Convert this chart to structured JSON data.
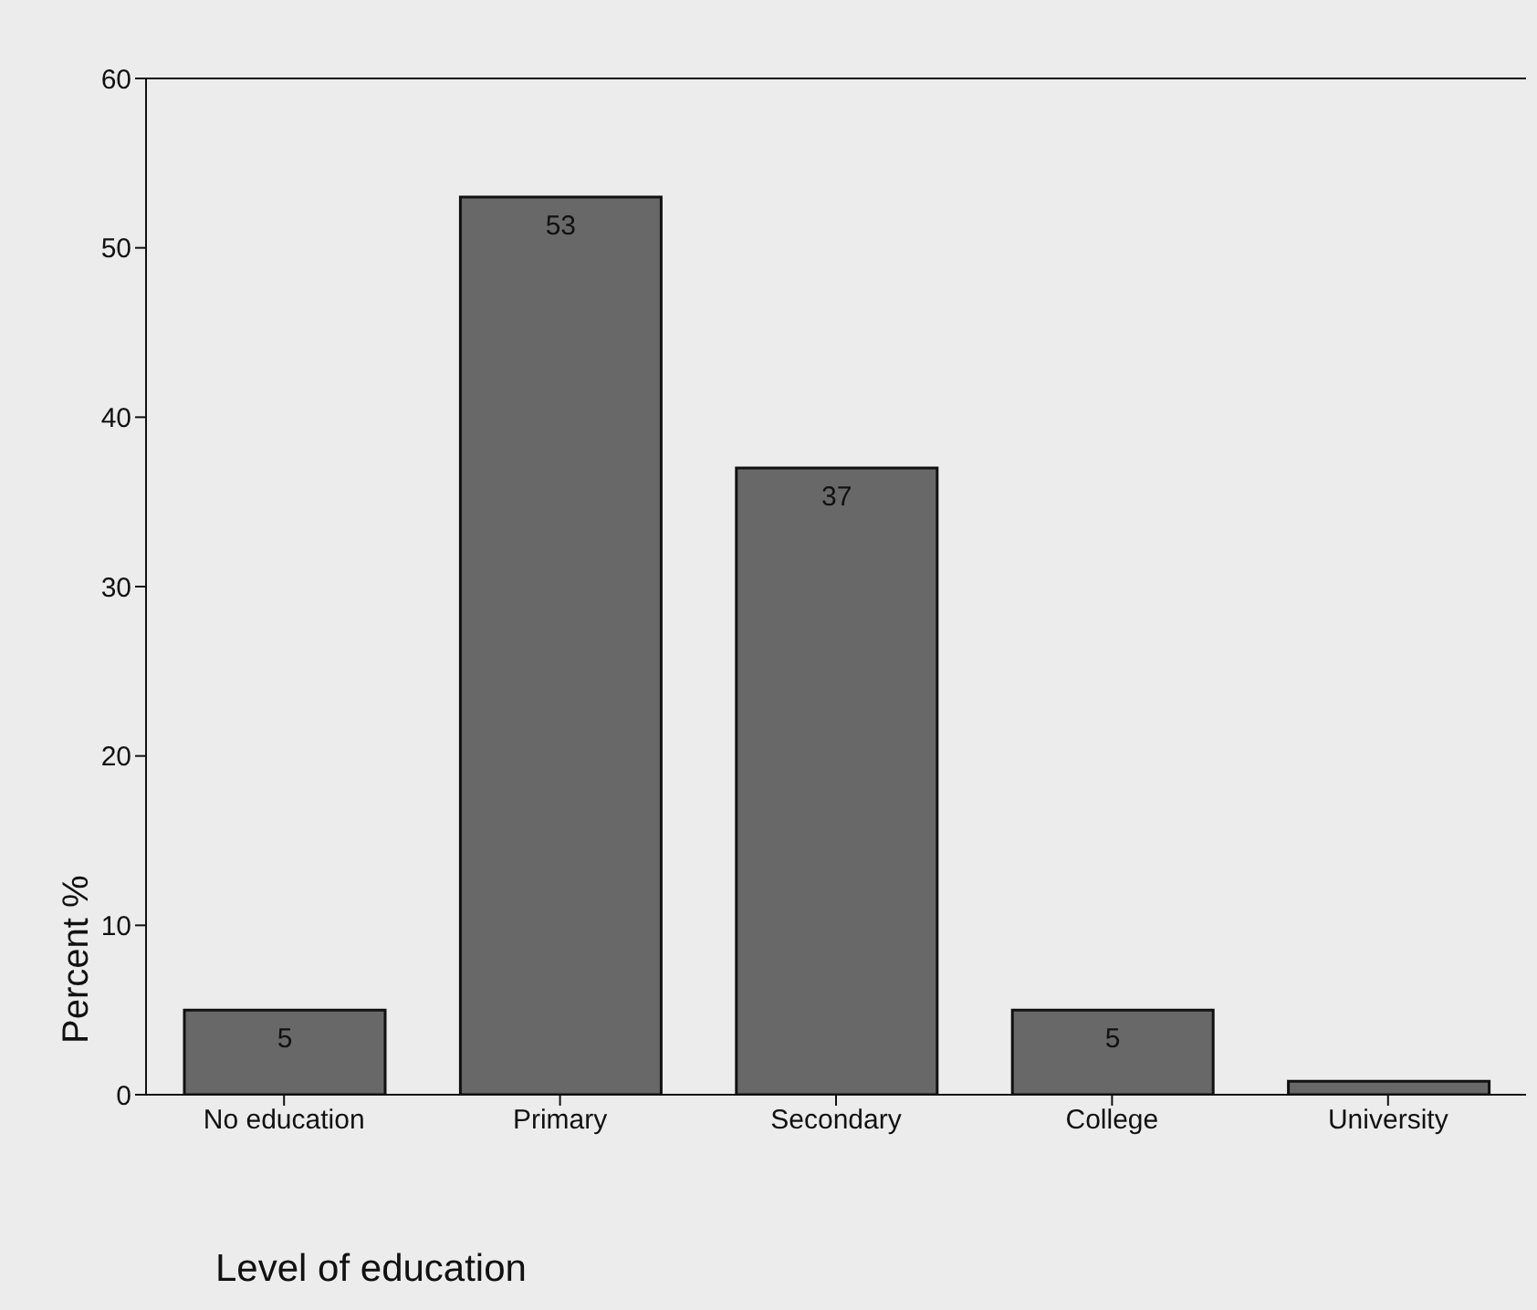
{
  "chart_data": {
    "type": "bar",
    "xlabel": "Level of education",
    "ylabel": "Percent %",
    "categories": [
      "No education",
      "Primary",
      "Secondary",
      "College",
      "University"
    ],
    "values": [
      5,
      53,
      37,
      5,
      0.8
    ],
    "value_labels": [
      "5",
      "53",
      "37",
      "5",
      null
    ],
    "color": "#686868",
    "ylim": [
      0,
      60
    ],
    "yticks": [
      0,
      10,
      20,
      30,
      40,
      50,
      60
    ],
    "grid": false,
    "legend": false
  }
}
